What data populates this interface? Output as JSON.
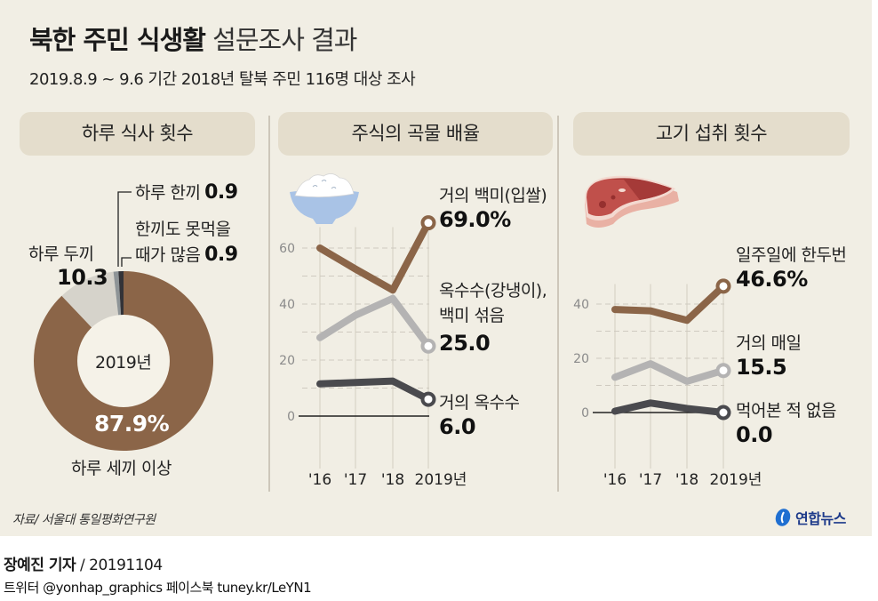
{
  "header": {
    "title_bold": "북한 주민 식생활",
    "title_light": "설문조사 결과",
    "subtitle": "2019.8.9 ~ 9.6 기간 2018년 탈북 주민 116명 대상 조사"
  },
  "colors": {
    "background": "#f1eee4",
    "section_header": "#e4ddcc",
    "brown": "#8b6548",
    "light_gray": "#b4b3b3",
    "dark_gray": "#4a4a4e",
    "donut_light": "#d6d3cb",
    "donut_dark": "#333338"
  },
  "sections": {
    "meals": "하루 식사 횟수",
    "grain": "주식의 곡물 배율",
    "meat": "고기 섭취 횟수"
  },
  "chart_data": [
    {
      "type": "pie",
      "title": "하루 식사 횟수",
      "center_label": "2019년",
      "unit": "%",
      "slices": [
        {
          "label": "하루 세끼 이상",
          "value": 87.9,
          "display": "87.9%"
        },
        {
          "label": "하루 두끼",
          "value": 10.3,
          "display": "10.3"
        },
        {
          "label": "하루 한끼",
          "value": 0.9,
          "display": "0.9"
        },
        {
          "label_line1": "한끼도 못먹을",
          "label_line2": "때가 많음",
          "label": "한끼도 못먹을 때가 많음",
          "value": 0.9,
          "display": "0.9"
        }
      ]
    },
    {
      "type": "line",
      "title": "주식의 곡물 배율",
      "categories": [
        "'16",
        "'17",
        "'18",
        "2019년"
      ],
      "ylim": [
        0,
        70
      ],
      "yticks": [
        "0",
        "20",
        "40",
        "60"
      ],
      "ytick_values": [
        0,
        20,
        40,
        60
      ],
      "grid": true,
      "series": [
        {
          "name": "거의 백미(입쌀)",
          "values": [
            60,
            52.5,
            45,
            69.0
          ],
          "end_label": "69.0%"
        },
        {
          "name_line1": "옥수수(강냉이),",
          "name_line2": "백미 섞음",
          "name": "옥수수(강냉이), 백미 섞음",
          "values": [
            28,
            36,
            42,
            25.0
          ],
          "end_label": "25.0"
        },
        {
          "name": "거의 옥수수",
          "values": [
            11.5,
            12,
            12.5,
            6.0
          ],
          "end_label": "6.0"
        }
      ]
    },
    {
      "type": "line",
      "title": "고기 섭취 횟수",
      "categories": [
        "'16",
        "'17",
        "'18",
        "2019년"
      ],
      "ylim": [
        0,
        50
      ],
      "yticks": [
        "0",
        "20",
        "40"
      ],
      "ytick_values": [
        0,
        20,
        40
      ],
      "grid": true,
      "series": [
        {
          "name": "일주일에 한두번",
          "values": [
            38,
            37.5,
            34,
            46.6
          ],
          "end_label": "46.6%"
        },
        {
          "name": "거의 매일",
          "values": [
            13,
            18,
            11.5,
            15.5
          ],
          "end_label": "15.5"
        },
        {
          "name": "먹어본 적 없음",
          "values": [
            0.5,
            3.5,
            1.5,
            0.0
          ],
          "end_label": "0.0"
        }
      ]
    }
  ],
  "footer": {
    "source": "자료/ 서울대 통일평화연구원",
    "logo_text": "연합뉴스",
    "reporter": "장예진 기자",
    "date": " / 20191104",
    "social": "트위터 @yonhap_graphics  페이스북 tuney.kr/LeYN1"
  }
}
